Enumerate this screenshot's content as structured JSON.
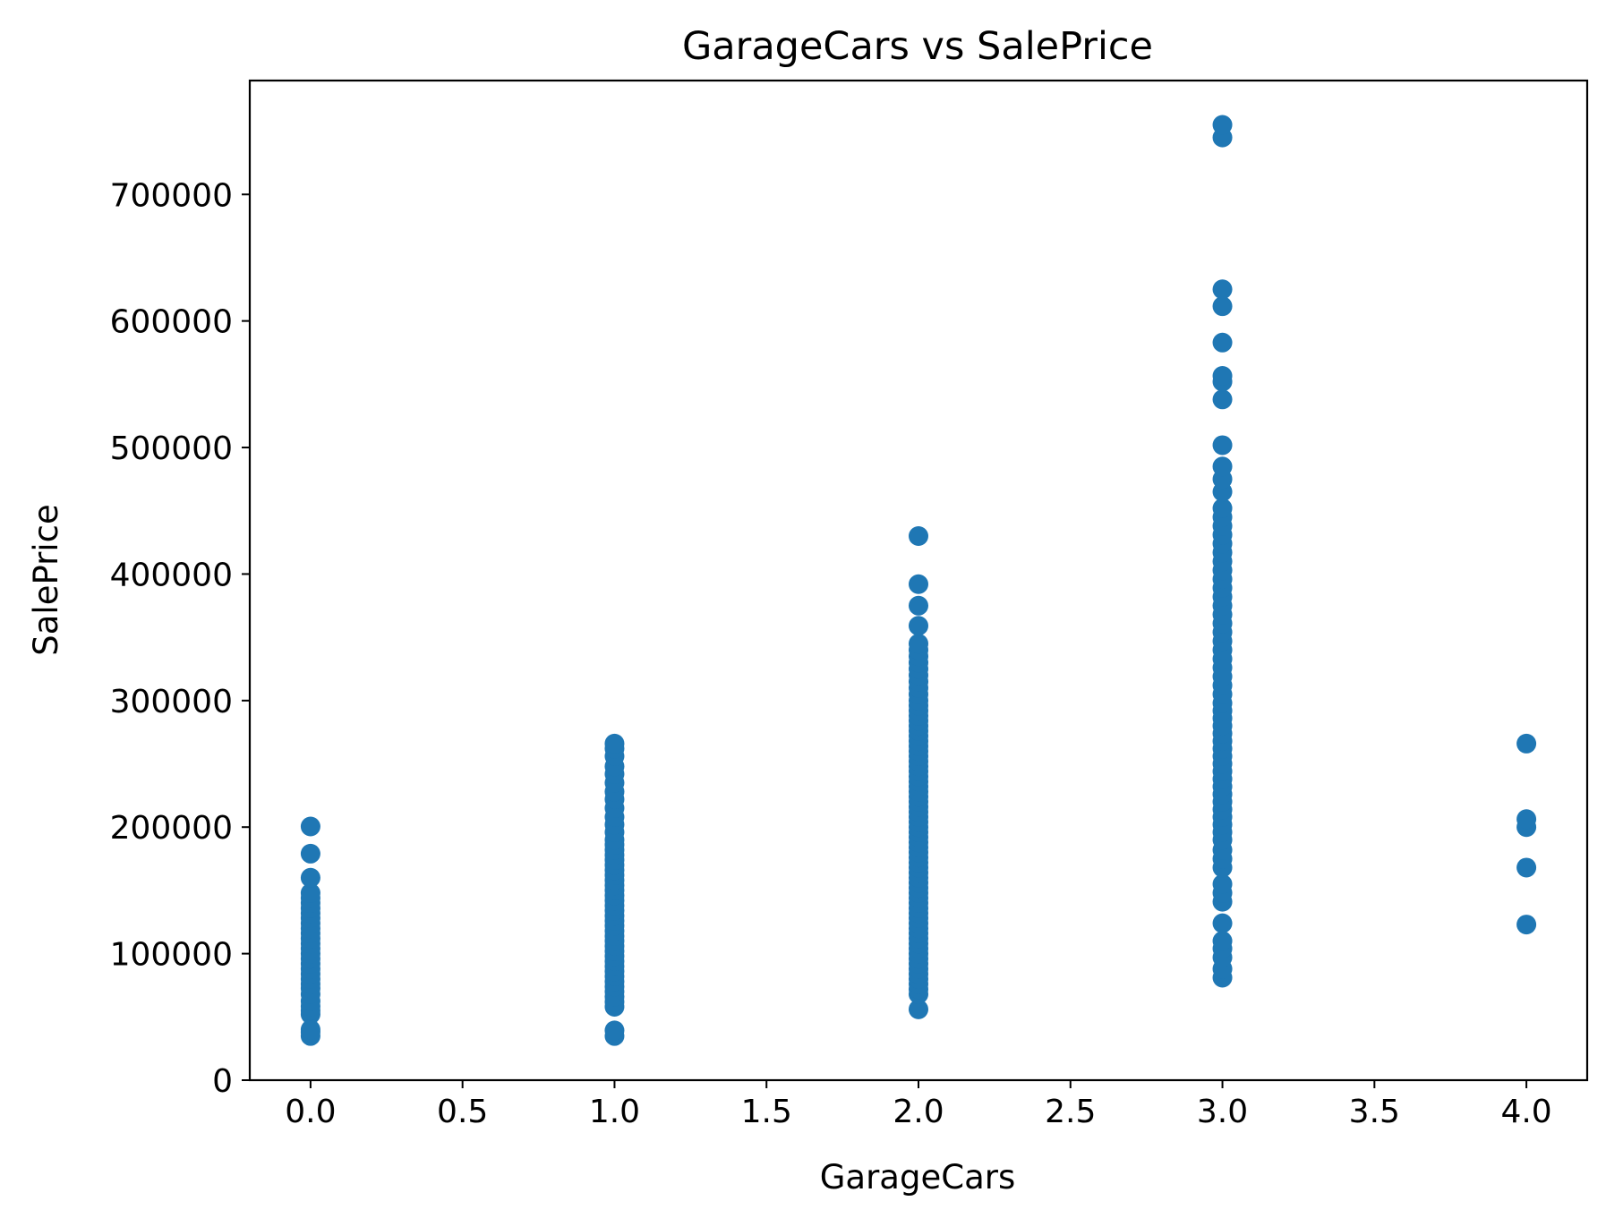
{
  "chart_data": {
    "type": "scatter",
    "title": "GarageCars vs SalePrice",
    "xlabel": "GarageCars",
    "ylabel": "SalePrice",
    "xlim": [
      -0.2,
      4.2
    ],
    "ylim": [
      0,
      790000
    ],
    "xticks": [
      0.0,
      0.5,
      1.0,
      1.5,
      2.0,
      2.5,
      3.0,
      3.5,
      4.0
    ],
    "xtick_labels": [
      "0.0",
      "0.5",
      "1.0",
      "1.5",
      "2.0",
      "2.5",
      "3.0",
      "3.5",
      "4.0"
    ],
    "yticks": [
      0,
      100000,
      200000,
      300000,
      400000,
      500000,
      600000,
      700000
    ],
    "ytick_labels": [
      "0",
      "100000",
      "200000",
      "300000",
      "400000",
      "500000",
      "600000",
      "700000"
    ],
    "grid": false,
    "marker_color": "#1f77b4",
    "series": [
      {
        "points": [
          [
            0,
            34900
          ],
          [
            0,
            37900
          ],
          [
            0,
            40000
          ],
          [
            0,
            52000
          ],
          [
            0,
            55000
          ],
          [
            0,
            58500
          ],
          [
            0,
            62500
          ],
          [
            0,
            68000
          ],
          [
            0,
            72500
          ],
          [
            0,
            76000
          ],
          [
            0,
            80000
          ],
          [
            0,
            84000
          ],
          [
            0,
            88000
          ],
          [
            0,
            92000
          ],
          [
            0,
            96000
          ],
          [
            0,
            100000
          ],
          [
            0,
            104000
          ],
          [
            0,
            108000
          ],
          [
            0,
            112000
          ],
          [
            0,
            116000
          ],
          [
            0,
            120000
          ],
          [
            0,
            124000
          ],
          [
            0,
            128000
          ],
          [
            0,
            132000
          ],
          [
            0,
            136000
          ],
          [
            0,
            140000
          ],
          [
            0,
            144000
          ],
          [
            0,
            148000
          ],
          [
            0,
            160000
          ],
          [
            0,
            179000
          ],
          [
            0,
            200500
          ],
          [
            1,
            34900
          ],
          [
            1,
            39300
          ],
          [
            1,
            58000
          ],
          [
            1,
            62000
          ],
          [
            1,
            66000
          ],
          [
            1,
            70000
          ],
          [
            1,
            74000
          ],
          [
            1,
            78000
          ],
          [
            1,
            82000
          ],
          [
            1,
            86000
          ],
          [
            1,
            90000
          ],
          [
            1,
            94000
          ],
          [
            1,
            98000
          ],
          [
            1,
            102000
          ],
          [
            1,
            106000
          ],
          [
            1,
            110000
          ],
          [
            1,
            114000
          ],
          [
            1,
            118000
          ],
          [
            1,
            122000
          ],
          [
            1,
            126000
          ],
          [
            1,
            130000
          ],
          [
            1,
            134000
          ],
          [
            1,
            138000
          ],
          [
            1,
            142000
          ],
          [
            1,
            146000
          ],
          [
            1,
            150000
          ],
          [
            1,
            154000
          ],
          [
            1,
            158000
          ],
          [
            1,
            162000
          ],
          [
            1,
            166000
          ],
          [
            1,
            170000
          ],
          [
            1,
            174000
          ],
          [
            1,
            178000
          ],
          [
            1,
            182000
          ],
          [
            1,
            186000
          ],
          [
            1,
            190000
          ],
          [
            1,
            196000
          ],
          [
            1,
            202000
          ],
          [
            1,
            208000
          ],
          [
            1,
            215000
          ],
          [
            1,
            222000
          ],
          [
            1,
            228000
          ],
          [
            1,
            235000
          ],
          [
            1,
            242000
          ],
          [
            1,
            248000
          ],
          [
            1,
            256000
          ],
          [
            1,
            262000
          ],
          [
            1,
            266000
          ],
          [
            2,
            55993
          ],
          [
            2,
            68000
          ],
          [
            2,
            72000
          ],
          [
            2,
            76000
          ],
          [
            2,
            80000
          ],
          [
            2,
            84000
          ],
          [
            2,
            88000
          ],
          [
            2,
            92000
          ],
          [
            2,
            96000
          ],
          [
            2,
            100000
          ],
          [
            2,
            104000
          ],
          [
            2,
            108000
          ],
          [
            2,
            112000
          ],
          [
            2,
            116000
          ],
          [
            2,
            120000
          ],
          [
            2,
            124000
          ],
          [
            2,
            128000
          ],
          [
            2,
            132000
          ],
          [
            2,
            136000
          ],
          [
            2,
            140000
          ],
          [
            2,
            144000
          ],
          [
            2,
            148000
          ],
          [
            2,
            152000
          ],
          [
            2,
            156000
          ],
          [
            2,
            160000
          ],
          [
            2,
            164000
          ],
          [
            2,
            168000
          ],
          [
            2,
            172000
          ],
          [
            2,
            176000
          ],
          [
            2,
            180000
          ],
          [
            2,
            184000
          ],
          [
            2,
            188000
          ],
          [
            2,
            192000
          ],
          [
            2,
            196000
          ],
          [
            2,
            200000
          ],
          [
            2,
            204000
          ],
          [
            2,
            208000
          ],
          [
            2,
            212000
          ],
          [
            2,
            216000
          ],
          [
            2,
            220000
          ],
          [
            2,
            224000
          ],
          [
            2,
            228000
          ],
          [
            2,
            232000
          ],
          [
            2,
            236000
          ],
          [
            2,
            240000
          ],
          [
            2,
            244000
          ],
          [
            2,
            248000
          ],
          [
            2,
            252000
          ],
          [
            2,
            256000
          ],
          [
            2,
            260000
          ],
          [
            2,
            264000
          ],
          [
            2,
            268000
          ],
          [
            2,
            272000
          ],
          [
            2,
            276000
          ],
          [
            2,
            280000
          ],
          [
            2,
            284000
          ],
          [
            2,
            288000
          ],
          [
            2,
            292000
          ],
          [
            2,
            296000
          ],
          [
            2,
            300000
          ],
          [
            2,
            305000
          ],
          [
            2,
            310000
          ],
          [
            2,
            315000
          ],
          [
            2,
            320000
          ],
          [
            2,
            325000
          ],
          [
            2,
            330000
          ],
          [
            2,
            335000
          ],
          [
            2,
            340000
          ],
          [
            2,
            345000
          ],
          [
            2,
            359100
          ],
          [
            2,
            375000
          ],
          [
            2,
            392000
          ],
          [
            2,
            430000
          ],
          [
            3,
            81000
          ],
          [
            3,
            88000
          ],
          [
            3,
            97000
          ],
          [
            3,
            104000
          ],
          [
            3,
            110000
          ],
          [
            3,
            124000
          ],
          [
            3,
            141000
          ],
          [
            3,
            148000
          ],
          [
            3,
            155000
          ],
          [
            3,
            168000
          ],
          [
            3,
            175000
          ],
          [
            3,
            182000
          ],
          [
            3,
            190000
          ],
          [
            3,
            196000
          ],
          [
            3,
            202000
          ],
          [
            3,
            208000
          ],
          [
            3,
            214000
          ],
          [
            3,
            220000
          ],
          [
            3,
            226000
          ],
          [
            3,
            232000
          ],
          [
            3,
            238000
          ],
          [
            3,
            244000
          ],
          [
            3,
            250000
          ],
          [
            3,
            256000
          ],
          [
            3,
            262000
          ],
          [
            3,
            268000
          ],
          [
            3,
            274000
          ],
          [
            3,
            280000
          ],
          [
            3,
            286000
          ],
          [
            3,
            292000
          ],
          [
            3,
            298000
          ],
          [
            3,
            305000
          ],
          [
            3,
            312000
          ],
          [
            3,
            319000
          ],
          [
            3,
            326000
          ],
          [
            3,
            333000
          ],
          [
            3,
            340000
          ],
          [
            3,
            347000
          ],
          [
            3,
            354000
          ],
          [
            3,
            361000
          ],
          [
            3,
            368000
          ],
          [
            3,
            375000
          ],
          [
            3,
            382000
          ],
          [
            3,
            389000
          ],
          [
            3,
            396000
          ],
          [
            3,
            403000
          ],
          [
            3,
            410000
          ],
          [
            3,
            417000
          ],
          [
            3,
            424000
          ],
          [
            3,
            431000
          ],
          [
            3,
            438000
          ],
          [
            3,
            445000
          ],
          [
            3,
            452000
          ],
          [
            3,
            465000
          ],
          [
            3,
            475000
          ],
          [
            3,
            485000
          ],
          [
            3,
            501837
          ],
          [
            3,
            538000
          ],
          [
            3,
            552000
          ],
          [
            3,
            556581
          ],
          [
            3,
            582933
          ],
          [
            3,
            611657
          ],
          [
            3,
            625000
          ],
          [
            3,
            745000
          ],
          [
            3,
            755000
          ],
          [
            4,
            123000
          ],
          [
            4,
            168000
          ],
          [
            4,
            200000
          ],
          [
            4,
            206300
          ],
          [
            4,
            265979
          ]
        ]
      }
    ]
  }
}
